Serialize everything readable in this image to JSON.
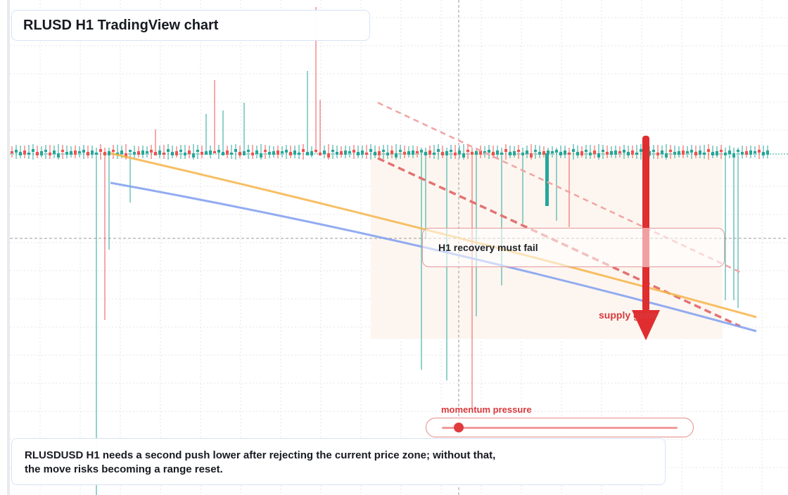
{
  "header": {
    "title": "RLUSD H1 TradingView chart"
  },
  "annotations": {
    "recovery_note": "H1 recovery must fail",
    "supply_label": "supply gone"
  },
  "momentum": {
    "label": "momentum pressure",
    "level": 0.07
  },
  "caption": {
    "line1": "RLUSDUSD H1 needs a second push lower after rejecting the current price zone; without that,",
    "line2": "the move risks becoming a range reset."
  },
  "colors": {
    "bullish_candle": "#26a69a",
    "bearish_candle": "#ef5350",
    "ma_fast": "#f6b44a",
    "ma_slow": "#7f9ef0",
    "down_arrow": "#e02d2f",
    "supply_zone": "#fdf6f0"
  }
}
